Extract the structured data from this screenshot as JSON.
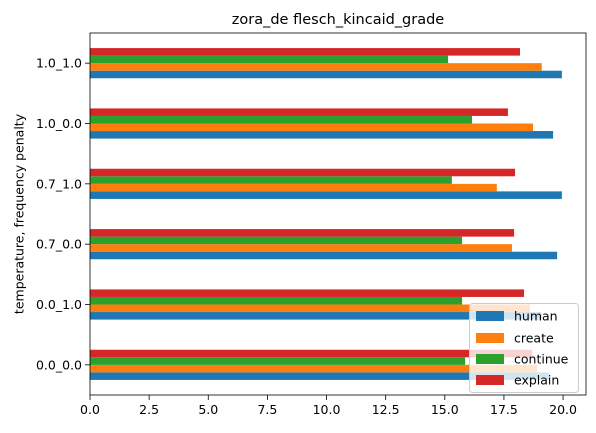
{
  "chart_data": {
    "type": "bar",
    "orientation": "horizontal",
    "title": "zora_de flesch_kincaid_grade",
    "ylabel": "temperature, frequency penalty",
    "categories": [
      "0.0_0.0",
      "0.0_1.0",
      "0.7_0.0",
      "0.7_1.0",
      "1.0_0.0",
      "1.0_1.0"
    ],
    "x_ticks": [
      0,
      2.5,
      5,
      7.5,
      10,
      12.5,
      15,
      17.5,
      20
    ],
    "x_tick_labels": [
      "0.0",
      "2.5",
      "5.0",
      "7.5",
      "10.0",
      "12.5",
      "15.0",
      "17.5",
      "20.0"
    ],
    "xlim": [
      0,
      20.97
    ],
    "grid": false,
    "legend_position": "lower right",
    "series": [
      {
        "name": "human",
        "color": "#1f77b4",
        "values": [
          19.4,
          19.1,
          19.75,
          19.95,
          19.58,
          19.95
        ]
      },
      {
        "name": "create",
        "color": "#ff7f0e",
        "values": [
          18.9,
          18.6,
          17.84,
          17.2,
          18.73,
          19.1
        ]
      },
      {
        "name": "continue",
        "color": "#2ca02c",
        "values": [
          15.86,
          15.73,
          15.73,
          15.3,
          16.15,
          15.14
        ]
      },
      {
        "name": "explain",
        "color": "#d62728",
        "values": [
          18.7,
          18.35,
          17.93,
          17.97,
          17.67,
          18.18
        ]
      }
    ]
  }
}
